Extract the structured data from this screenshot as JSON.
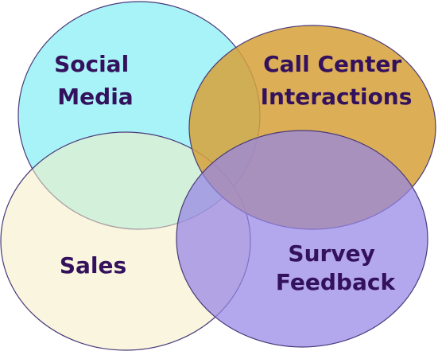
{
  "diagram": {
    "type": "venn",
    "text_color": "#33115c",
    "stroke_color": "#4a3a7a",
    "circles": [
      {
        "id": "social-media",
        "label_lines": [
          "Social",
          "Media"
        ],
        "fill": "#a8f3f7",
        "opacity": 1.0
      },
      {
        "id": "sales",
        "label_lines": [
          "Sales"
        ],
        "fill": "#f4ecc2",
        "opacity": 0.55
      },
      {
        "id": "call-center-interactions",
        "label_lines": [
          "Call Center",
          "Interactions"
        ],
        "fill": "#d6a13a",
        "opacity": 0.85
      },
      {
        "id": "survey-feedback",
        "label_lines": [
          "Survey",
          "Feedback"
        ],
        "fill": "#9685e6",
        "opacity": 0.72
      }
    ]
  }
}
